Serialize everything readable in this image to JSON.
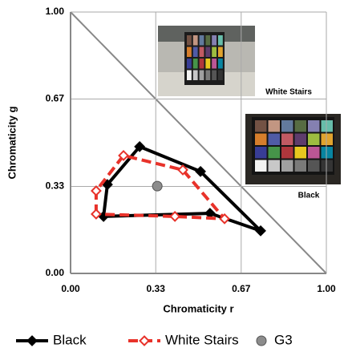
{
  "chart_data": {
    "type": "line",
    "xlabel": "Chromaticity r",
    "ylabel": "Chromaticity g",
    "xlim": [
      0,
      1
    ],
    "ylim": [
      0,
      1
    ],
    "xticks": [
      {
        "value": 0,
        "label": "0.00"
      },
      {
        "value": 0.333,
        "label": "0.33"
      },
      {
        "value": 0.667,
        "label": "0.67"
      },
      {
        "value": 1,
        "label": "1.00"
      }
    ],
    "yticks": [
      {
        "value": 0,
        "label": "0.00"
      },
      {
        "value": 0.333,
        "label": "0.33"
      },
      {
        "value": 0.667,
        "label": "0.67"
      },
      {
        "value": 1,
        "label": "1.00"
      }
    ],
    "grid": true,
    "series": [
      {
        "name": "Black",
        "color": "#000000",
        "marker": "diamond",
        "dashed": false,
        "x": [
          0.129,
          0.144,
          0.27,
          0.508,
          0.743,
          0.545,
          0.129
        ],
        "values": [
          0.218,
          0.34,
          0.485,
          0.39,
          0.163,
          0.23,
          0.218
        ]
      },
      {
        "name": "White Stairs",
        "color": "#e8322a",
        "marker": "open-diamond",
        "dashed": true,
        "x": [
          0.1,
          0.1,
          0.207,
          0.439,
          0.602,
          0.408,
          0.1
        ],
        "values": [
          0.227,
          0.316,
          0.451,
          0.396,
          0.209,
          0.218,
          0.227
        ]
      },
      {
        "name": "G3",
        "color": "#8c8c8c",
        "marker": "circle",
        "dashed": false,
        "scatter": true,
        "x": [
          0.339
        ],
        "values": [
          0.334
        ]
      }
    ],
    "annotations": [
      "White Stairs",
      "Black"
    ]
  }
}
